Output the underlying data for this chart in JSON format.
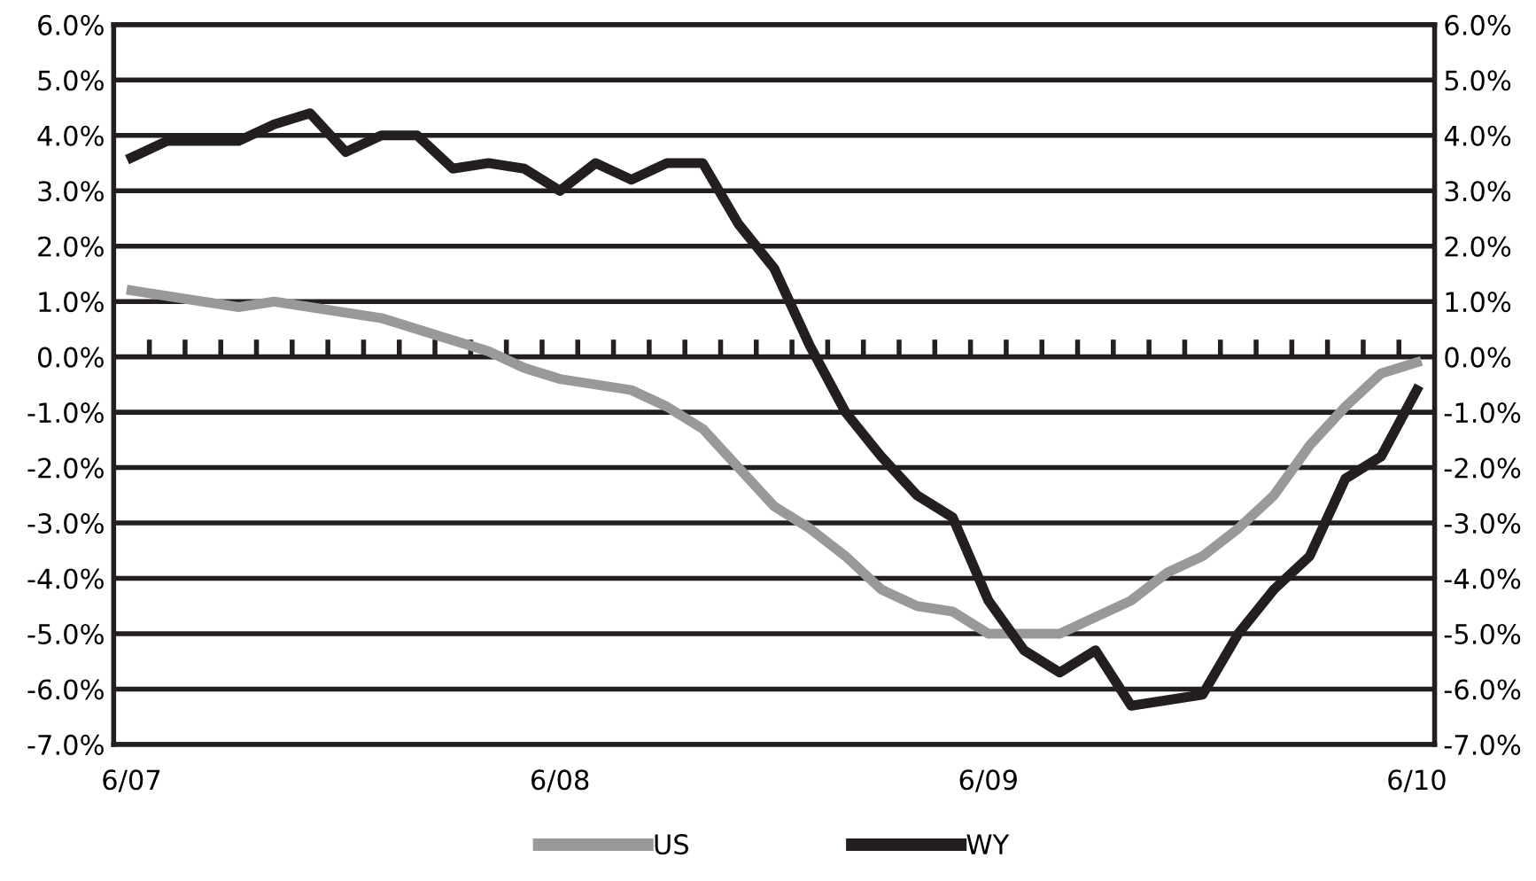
{
  "chart_data": {
    "type": "line",
    "categories": [
      "6/07",
      null,
      null,
      null,
      null,
      null,
      null,
      null,
      null,
      null,
      null,
      null,
      "6/08",
      null,
      null,
      null,
      null,
      null,
      null,
      null,
      null,
      null,
      null,
      null,
      "6/09",
      null,
      null,
      null,
      null,
      null,
      null,
      null,
      null,
      null,
      null,
      null,
      "6/10"
    ],
    "series": [
      {
        "name": "US",
        "color": "#999999",
        "values": [
          1.2,
          1.1,
          1.0,
          0.9,
          1.0,
          0.9,
          0.8,
          0.7,
          0.5,
          0.3,
          0.1,
          -0.2,
          -0.4,
          -0.5,
          -0.6,
          -0.9,
          -1.3,
          -2.0,
          -2.7,
          -3.1,
          -3.6,
          -4.2,
          -4.5,
          -4.6,
          -5.0,
          -5.0,
          -5.0,
          -4.7,
          -4.4,
          -3.9,
          -3.6,
          -3.1,
          -2.5,
          -1.6,
          -0.9,
          -0.3,
          -0.1
        ]
      },
      {
        "name": "WY",
        "color": "#231f20",
        "values": [
          3.6,
          3.9,
          3.9,
          3.9,
          4.2,
          4.4,
          3.7,
          4.0,
          4.0,
          3.4,
          3.5,
          3.4,
          3.0,
          3.5,
          3.2,
          3.5,
          3.5,
          2.4,
          1.6,
          0.2,
          -1.0,
          -1.8,
          -2.5,
          -2.9,
          -4.4,
          -5.3,
          -5.7,
          -5.3,
          -6.3,
          -6.2,
          -6.1,
          -5.0,
          -4.2,
          -3.6,
          -2.2,
          -1.8,
          -0.6
        ]
      }
    ],
    "ylim": [
      -7,
      6
    ],
    "yticks": [
      {
        "value": 6,
        "label": "6.0%"
      },
      {
        "value": 5,
        "label": "5.0%"
      },
      {
        "value": 4,
        "label": "4.0%"
      },
      {
        "value": 3,
        "label": "3.0%"
      },
      {
        "value": 2,
        "label": "2.0%"
      },
      {
        "value": 1,
        "label": "1.0%"
      },
      {
        "value": 0,
        "label": "0.0%"
      },
      {
        "value": -1,
        "label": "-1.0%"
      },
      {
        "value": -2,
        "label": "-2.0%"
      },
      {
        "value": -3,
        "label": "-3.0%"
      },
      {
        "value": -4,
        "label": "-4.0%"
      },
      {
        "value": -5,
        "label": "-5.0%"
      },
      {
        "value": -6,
        "label": "-6.0%"
      },
      {
        "value": -7,
        "label": "-7.0%"
      }
    ],
    "y2lim": [
      -7,
      6
    ],
    "y2ticks": [
      {
        "value": 6,
        "label": "6.0%"
      },
      {
        "value": 5,
        "label": "5.0%"
      },
      {
        "value": 4,
        "label": "4.0%"
      },
      {
        "value": 3,
        "label": "3.0%"
      },
      {
        "value": 2,
        "label": "2.0%"
      },
      {
        "value": 1,
        "label": "1.0%"
      },
      {
        "value": 0,
        "label": "0.0%"
      },
      {
        "value": -1,
        "label": "-1.0%"
      },
      {
        "value": -2,
        "label": "-2.0%"
      },
      {
        "value": -3,
        "label": "-3.0%"
      },
      {
        "value": -4,
        "label": "-4.0%"
      },
      {
        "value": -5,
        "label": "-5.0%"
      },
      {
        "value": -6,
        "label": "-6.0%"
      },
      {
        "value": -7,
        "label": "-7.0%"
      }
    ],
    "grid": "y",
    "legend": "bottom",
    "marker": "none",
    "line_style": "solid"
  }
}
